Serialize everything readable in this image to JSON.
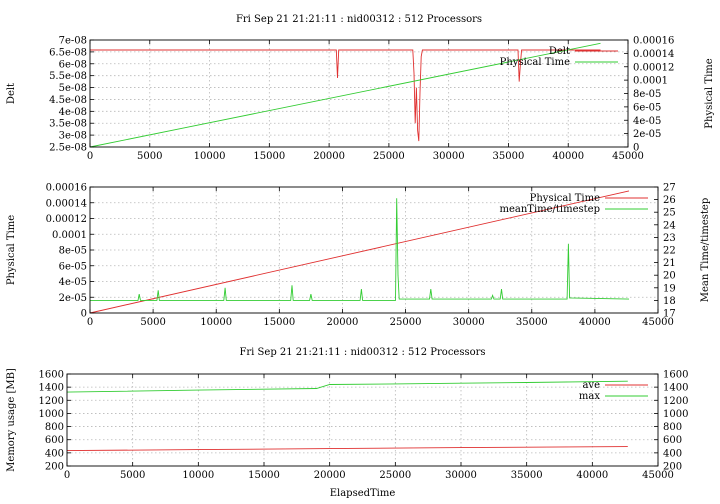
{
  "chart_data": [
    {
      "type": "line",
      "title": "Fri Sep 21 21:21:11 : nid00312 : 512 Processors",
      "xlabel": "",
      "xlim": [
        0,
        45000
      ],
      "xticks": [
        "0",
        "5000",
        "10000",
        "15000",
        "20000",
        "25000",
        "30000",
        "35000",
        "40000",
        "45000"
      ],
      "ylabel": "Delt",
      "ylim": [
        2.5e-08,
        7e-08
      ],
      "yticks": [
        "2.5e-08",
        "3e-08",
        "3.5e-08",
        "4e-08",
        "4.5e-08",
        "5e-08",
        "5.5e-08",
        "6e-08",
        "6.5e-08",
        "7e-08"
      ],
      "y2label": "Physical Time",
      "y2lim": [
        0,
        0.00016
      ],
      "y2ticks": [
        "0",
        "2e-05",
        "4e-05",
        "6e-05",
        "8e-05",
        "0.0001",
        "0.00012",
        "0.00014",
        "0.00016"
      ],
      "grid": true,
      "legend": "top-right",
      "series": [
        {
          "name": "Delt",
          "color": "#e03030",
          "axis": "y",
          "x": [
            0,
            20600,
            20700,
            20800,
            27000,
            27100,
            27200,
            27300,
            27400,
            27500,
            27600,
            27700,
            27800,
            35800,
            35900,
            36000,
            36100,
            42700
          ],
          "y": [
            6.58e-08,
            6.58e-08,
            5.4e-08,
            6.58e-08,
            6.58e-08,
            5.6e-08,
            3.5e-08,
            5e-08,
            3.2e-08,
            2.75e-08,
            4.8e-08,
            6.3e-08,
            6.58e-08,
            6.58e-08,
            5.25e-08,
            6e-08,
            6.58e-08,
            6.58e-08
          ]
        },
        {
          "name": "Physical Time",
          "color": "#33cc33",
          "axis": "y2",
          "x": [
            0,
            42700
          ],
          "y": [
            0,
            0.000155
          ]
        }
      ]
    },
    {
      "type": "line",
      "title": "",
      "xlabel": "",
      "xlim": [
        0,
        45000
      ],
      "xticks": [
        "0",
        "5000",
        "10000",
        "15000",
        "20000",
        "25000",
        "30000",
        "35000",
        "40000",
        "45000"
      ],
      "ylabel": "Physical Time",
      "ylim": [
        0,
        0.00016
      ],
      "yticks": [
        "0",
        "2e-05",
        "4e-05",
        "6e-05",
        "8e-05",
        "0.0001",
        "0.00012",
        "0.00014",
        "0.00016"
      ],
      "y2label": "Mean Time/timestep",
      "y2lim": [
        17,
        27
      ],
      "y2ticks": [
        "17",
        "18",
        "19",
        "20",
        "21",
        "22",
        "23",
        "24",
        "25",
        "26",
        "27"
      ],
      "grid": true,
      "legend": "top-right",
      "series": [
        {
          "name": "Physical Time",
          "color": "#e03030",
          "axis": "y",
          "x": [
            0,
            42700
          ],
          "y": [
            0,
            0.000155
          ]
        },
        {
          "name": "meanTime/timestep",
          "color": "#33cc33",
          "axis": "y2",
          "x": [
            0,
            3800,
            3900,
            4000,
            5300,
            5400,
            5500,
            10600,
            10700,
            10800,
            15900,
            16000,
            16100,
            17400,
            17500,
            17600,
            21400,
            21500,
            21600,
            24200,
            24300,
            24400,
            24500,
            26900,
            27000,
            27100,
            31800,
            31900,
            32000,
            32500,
            32600,
            32700,
            37800,
            37900,
            38000,
            42700
          ],
          "y": [
            18.0,
            18.0,
            18.5,
            18.0,
            18.0,
            18.8,
            18.0,
            18.0,
            19.0,
            18.0,
            18.0,
            19.2,
            18.0,
            18.0,
            18.5,
            18.0,
            18.0,
            18.9,
            18.0,
            18.0,
            26.1,
            20.0,
            18.1,
            18.1,
            18.9,
            18.1,
            18.1,
            18.4,
            18.1,
            18.1,
            18.9,
            18.1,
            18.1,
            22.5,
            18.2,
            18.1
          ]
        }
      ]
    },
    {
      "type": "line",
      "title": "Fri Sep 21 21:21:11 : nid00312 : 512 Processors",
      "xlabel": "ElapsedTime",
      "xlim": [
        0,
        45000
      ],
      "xticks": [
        "0",
        "5000",
        "10000",
        "15000",
        "20000",
        "25000",
        "30000",
        "35000",
        "40000",
        "45000"
      ],
      "ylabel": "Memory usage [MB]",
      "ylim": [
        200,
        1600
      ],
      "yticks": [
        "200",
        "400",
        "600",
        "800",
        "1000",
        "1200",
        "1400",
        "1600"
      ],
      "y2label": "",
      "y2lim": [
        200,
        1600
      ],
      "y2ticks": [
        "200",
        "400",
        "600",
        "800",
        "1000",
        "1200",
        "1400",
        "1600"
      ],
      "grid": true,
      "legend": "top-right",
      "series": [
        {
          "name": "ave",
          "color": "#e03030",
          "axis": "y",
          "x": [
            0,
            10000,
            20000,
            30000,
            42700
          ],
          "y": [
            435,
            450,
            465,
            480,
            495
          ]
        },
        {
          "name": "max",
          "color": "#33cc33",
          "axis": "y",
          "x": [
            0,
            10000,
            19000,
            20000,
            25000,
            30000,
            35000,
            42700
          ],
          "y": [
            1325,
            1355,
            1380,
            1440,
            1450,
            1460,
            1470,
            1490
          ]
        }
      ]
    }
  ],
  "panels": [
    {
      "left": 90,
      "right": 628,
      "top": 40,
      "bottom": 147,
      "ylabel_x": 14,
      "y2label_x": 712,
      "title_y": 22,
      "xlabel_y": 0
    },
    {
      "left": 90,
      "right": 658,
      "top": 187,
      "bottom": 313,
      "ylabel_x": 14,
      "y2label_x": 708,
      "title_y": 0,
      "xlabel_y": 0
    },
    {
      "left": 67,
      "right": 658,
      "top": 374,
      "bottom": 466,
      "ylabel_x": 14,
      "y2label_x": 0,
      "title_y": 355,
      "xlabel_y": 496
    }
  ]
}
